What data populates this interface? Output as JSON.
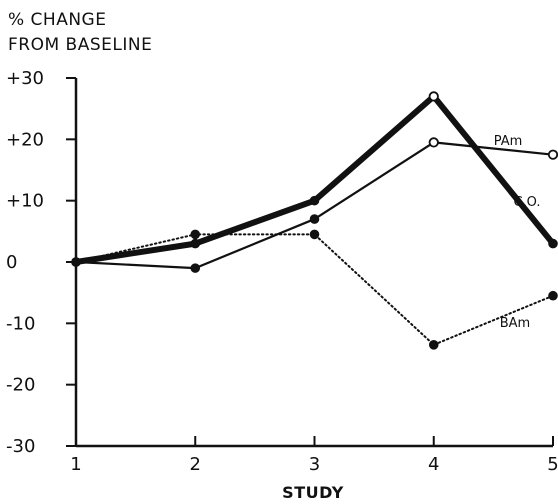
{
  "chart_data": {
    "type": "line",
    "title_lines": [
      "% CHANGE",
      "FROM BASELINE"
    ],
    "xlabel": "STUDY",
    "ylabel": "",
    "x": [
      1,
      2,
      3,
      4,
      5
    ],
    "ylim": [
      -30,
      30
    ],
    "yticks": [
      30,
      20,
      10,
      0,
      -10,
      -20,
      -30
    ],
    "ytick_labels": [
      "+30",
      "+20",
      "+10",
      "0",
      "-10",
      "-20",
      "-30"
    ],
    "xtick_labels": [
      "1",
      "2",
      "3",
      "4",
      "5"
    ],
    "grid": false,
    "series": [
      {
        "name": "C.O.",
        "values": [
          0,
          3,
          10,
          27,
          3
        ],
        "color": "#111111",
        "style": "thick-solid",
        "marker": "filled",
        "open_at": [
          3
        ]
      },
      {
        "name": "PAm",
        "values": [
          0,
          -1,
          7,
          19.5,
          17.5
        ],
        "color": "#111111",
        "style": "solid",
        "marker": "filled",
        "open_at": [
          3,
          4
        ]
      },
      {
        "name": "BAm",
        "values": [
          0,
          4.5,
          4.5,
          -13.5,
          -5.5
        ],
        "color": "#111111",
        "style": "dotted",
        "marker": "filled",
        "open_at": []
      }
    ]
  }
}
